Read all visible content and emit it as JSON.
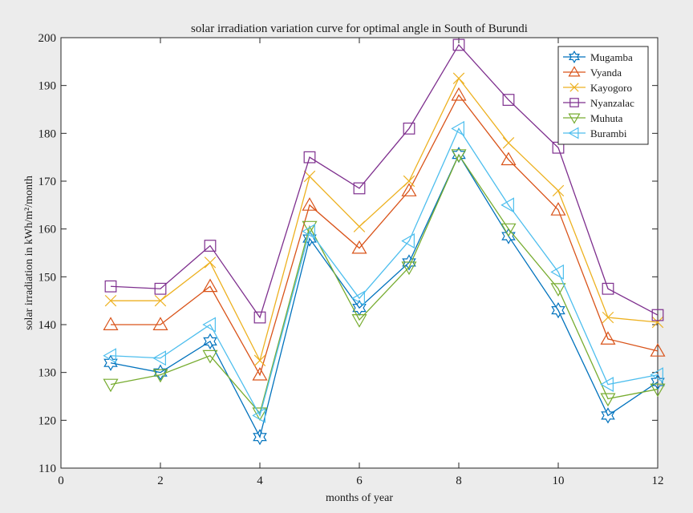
{
  "chart_data": {
    "type": "line",
    "title": "solar irradiation variation curve for optimal angle in South of Burundi",
    "xlabel": "months of year",
    "ylabel": "solar irradiation in kWh/m²/month",
    "xlim": [
      0,
      12
    ],
    "ylim": [
      110,
      200
    ],
    "xticks": [
      0,
      2,
      4,
      6,
      8,
      10,
      12
    ],
    "yticks": [
      110,
      120,
      130,
      140,
      150,
      160,
      170,
      180,
      190,
      200
    ],
    "grid": false,
    "legend_position": "top-right",
    "x": [
      1,
      2,
      3,
      4,
      5,
      6,
      7,
      8,
      9,
      10,
      11,
      12
    ],
    "series": [
      {
        "name": "Mugamba",
        "color": "#0072BD",
        "marker": "hexagram",
        "values": [
          132,
          130,
          136.5,
          116.5,
          158,
          143.5,
          153,
          175.5,
          158.5,
          143,
          121,
          128
        ]
      },
      {
        "name": "Vyanda",
        "color": "#D95319",
        "marker": "triangle-up",
        "values": [
          140,
          140,
          148,
          129.5,
          165,
          156,
          168,
          188,
          174.5,
          164,
          137,
          134.5
        ]
      },
      {
        "name": "Kayogoro",
        "color": "#EDB120",
        "marker": "x",
        "values": [
          145,
          145,
          153,
          132.5,
          171,
          160.5,
          170,
          191.5,
          178,
          168,
          141.5,
          140.5
        ]
      },
      {
        "name": "Nyanzalac",
        "color": "#7E2F8E",
        "marker": "square",
        "values": [
          148,
          147.5,
          156.5,
          141.5,
          175,
          168.5,
          181,
          198.5,
          187,
          177,
          147.5,
          142
        ]
      },
      {
        "name": "Muhuta",
        "color": "#77AC30",
        "marker": "triangle-down",
        "values": [
          127.5,
          129.5,
          133.5,
          121.5,
          160.5,
          141,
          152,
          175.5,
          160,
          147.5,
          124.5,
          126.5
        ]
      },
      {
        "name": "Burambi",
        "color": "#4DBEEE",
        "marker": "triangle-left",
        "values": [
          133.5,
          133,
          140,
          121,
          159.5,
          145.5,
          157.5,
          181,
          165,
          151,
          127.5,
          129.5
        ]
      }
    ]
  }
}
